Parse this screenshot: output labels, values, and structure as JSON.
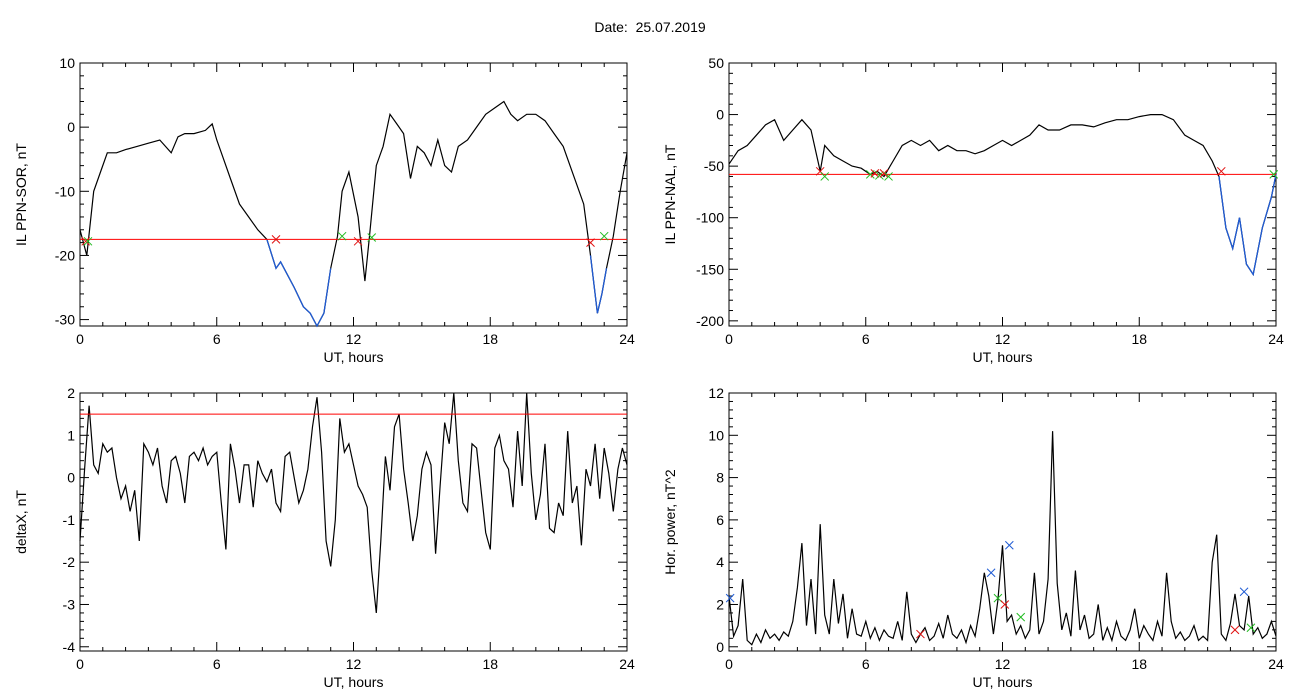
{
  "page": {
    "title": "Date:  25.07.2019"
  },
  "colors": {
    "trace": "#000000",
    "threshold": "#ff0000",
    "below_threshold": "#1f5bd4",
    "marker_red": "#e01010",
    "marker_green": "#22bb22",
    "marker_blue": "#1f5bd4"
  },
  "chart_data": [
    {
      "id": "sor",
      "type": "line",
      "xlabel": "UT, hours",
      "ylabel": "IL PPN-SOR, nT",
      "xlim": [
        0,
        24
      ],
      "ylim": [
        -31,
        10
      ],
      "xticks": [
        0,
        6,
        12,
        18,
        24
      ],
      "yticks": [
        -30,
        -20,
        -10,
        0,
        10
      ],
      "threshold": -17.5,
      "series": [
        {
          "x": [
            0,
            0.3,
            0.6,
            0.9,
            1.2,
            1.6,
            2,
            2.5,
            3,
            3.5,
            4,
            4.3,
            4.6,
            5,
            5.5,
            5.8,
            6,
            6.3,
            6.6,
            7,
            7.4,
            7.8,
            8.2,
            8.6,
            8.8,
            9.1,
            9.4,
            9.8,
            10.1,
            10.4,
            10.7,
            11,
            11.3,
            11.5,
            11.8,
            12.2,
            12.5,
            12.7,
            13,
            13.3,
            13.6,
            13.9,
            14.2,
            14.5,
            14.8,
            15.1,
            15.4,
            15.7,
            16,
            16.3,
            16.6,
            17,
            17.4,
            17.8,
            18.2,
            18.6,
            18.9,
            19.2,
            19.6,
            20,
            20.4,
            20.8,
            21.2,
            21.5,
            21.8,
            22.1,
            22.4,
            22.7,
            22.9,
            23.1,
            23.4,
            23.7,
            24
          ],
          "y": [
            -16,
            -20,
            -10,
            -7,
            -4,
            -4,
            -3.5,
            -3,
            -2.5,
            -2,
            -4,
            -1.5,
            -1,
            -1,
            -0.5,
            0.5,
            -2,
            -5,
            -8,
            -12,
            -14,
            -16,
            -17.5,
            -22,
            -21,
            -23,
            -25,
            -28,
            -29,
            -31,
            -29,
            -22,
            -17,
            -10,
            -7,
            -14,
            -24,
            -17,
            -6,
            -3,
            2,
            0.5,
            -1,
            -8,
            -3,
            -4,
            -6,
            -2,
            -6,
            -7,
            -3,
            -2,
            0,
            2,
            3,
            4,
            2,
            1,
            2,
            2,
            1,
            -1,
            -3,
            -6,
            -9,
            -12,
            -20,
            -29,
            -26,
            -22,
            -17,
            -10,
            -4
          ]
        }
      ],
      "markers": [
        {
          "x": 0.25,
          "y": -17.8,
          "color": "red"
        },
        {
          "x": 0.35,
          "y": -17.8,
          "color": "green"
        },
        {
          "x": 8.6,
          "y": -17.5,
          "color": "red"
        },
        {
          "x": 11.5,
          "y": -17,
          "color": "green"
        },
        {
          "x": 12.2,
          "y": -17.8,
          "color": "red"
        },
        {
          "x": 12.8,
          "y": -17.2,
          "color": "green"
        },
        {
          "x": 22.4,
          "y": -18,
          "color": "red"
        },
        {
          "x": 23,
          "y": -17,
          "color": "green"
        }
      ]
    },
    {
      "id": "nal",
      "type": "line",
      "xlabel": "UT, hours",
      "ylabel": "IL PPN-NAL, nT",
      "xlim": [
        0,
        24
      ],
      "ylim": [
        -205,
        50
      ],
      "xticks": [
        0,
        6,
        12,
        18,
        24
      ],
      "yticks": [
        -200,
        -150,
        -100,
        -50,
        0,
        50
      ],
      "threshold": -58,
      "series": [
        {
          "x": [
            0,
            0.4,
            0.8,
            1.2,
            1.6,
            2,
            2.4,
            2.8,
            3.2,
            3.6,
            4,
            4.2,
            4.6,
            5,
            5.4,
            5.8,
            6.2,
            6.5,
            6.8,
            7.2,
            7.6,
            8,
            8.4,
            8.8,
            9.2,
            9.6,
            10,
            10.4,
            10.8,
            11.2,
            11.6,
            12,
            12.4,
            12.8,
            13.2,
            13.6,
            14,
            14.5,
            15,
            15.5,
            16,
            16.5,
            17,
            17.5,
            18,
            18.5,
            19,
            19.5,
            20,
            20.4,
            20.8,
            21.2,
            21.5,
            21.8,
            22.1,
            22.4,
            22.7,
            23,
            23.4,
            23.8,
            24
          ],
          "y": [
            -48,
            -35,
            -30,
            -20,
            -10,
            -5,
            -25,
            -15,
            -5,
            -15,
            -55,
            -30,
            -40,
            -45,
            -50,
            -52,
            -58,
            -55,
            -60,
            -45,
            -30,
            -25,
            -30,
            -25,
            -35,
            -30,
            -35,
            -35,
            -38,
            -35,
            -30,
            -25,
            -30,
            -25,
            -20,
            -10,
            -15,
            -15,
            -10,
            -10,
            -12,
            -8,
            -5,
            -5,
            -2,
            0,
            0,
            -5,
            -20,
            -25,
            -30,
            -45,
            -60,
            -110,
            -130,
            -100,
            -145,
            -155,
            -110,
            -80,
            -58
          ]
        }
      ],
      "markers": [
        {
          "x": 4.0,
          "y": -55,
          "color": "red"
        },
        {
          "x": 4.2,
          "y": -60,
          "color": "green"
        },
        {
          "x": 6.2,
          "y": -58,
          "color": "green"
        },
        {
          "x": 6.4,
          "y": -57,
          "color": "red"
        },
        {
          "x": 6.6,
          "y": -59,
          "color": "green"
        },
        {
          "x": 6.8,
          "y": -57,
          "color": "red"
        },
        {
          "x": 7.0,
          "y": -60,
          "color": "green"
        },
        {
          "x": 21.6,
          "y": -55,
          "color": "red"
        },
        {
          "x": 23.9,
          "y": -58,
          "color": "green"
        }
      ]
    },
    {
      "id": "deltax",
      "type": "line",
      "xlabel": "UT, hours",
      "ylabel": "deltaX, nT",
      "xlim": [
        0,
        24
      ],
      "ylim": [
        -4.1,
        2
      ],
      "xticks": [
        0,
        6,
        12,
        18,
        24
      ],
      "yticks": [
        -4,
        -3,
        -2,
        -1,
        0,
        1,
        2
      ],
      "threshold": 1.5,
      "series": [
        {
          "x": [
            0,
            0.2,
            0.4,
            0.6,
            0.8,
            1.0,
            1.2,
            1.4,
            1.6,
            1.8,
            2.0,
            2.2,
            2.4,
            2.6,
            2.8,
            3.0,
            3.2,
            3.4,
            3.6,
            3.8,
            4.0,
            4.2,
            4.4,
            4.6,
            4.8,
            5.0,
            5.2,
            5.4,
            5.6,
            5.8,
            6.0,
            6.2,
            6.4,
            6.6,
            6.8,
            7.0,
            7.2,
            7.4,
            7.6,
            7.8,
            8.0,
            8.2,
            8.4,
            8.6,
            8.8,
            9.0,
            9.2,
            9.4,
            9.6,
            9.8,
            10.0,
            10.2,
            10.4,
            10.6,
            10.8,
            11.0,
            11.2,
            11.4,
            11.6,
            11.8,
            12.0,
            12.2,
            12.4,
            12.6,
            12.8,
            13.0,
            13.2,
            13.4,
            13.6,
            13.8,
            14.0,
            14.2,
            14.4,
            14.6,
            14.8,
            15.0,
            15.2,
            15.4,
            15.6,
            15.8,
            16.0,
            16.2,
            16.4,
            16.6,
            16.8,
            17.0,
            17.2,
            17.4,
            17.6,
            17.8,
            18.0,
            18.2,
            18.4,
            18.6,
            18.8,
            19.0,
            19.2,
            19.4,
            19.6,
            19.8,
            20.0,
            20.2,
            20.4,
            20.6,
            20.8,
            21.0,
            21.2,
            21.4,
            21.6,
            21.8,
            22.0,
            22.2,
            22.4,
            22.6,
            22.8,
            23.0,
            23.2,
            23.4,
            23.6,
            23.8,
            24.0
          ],
          "y": [
            -1.5,
            0.2,
            1.7,
            0.3,
            0.1,
            0.8,
            0.6,
            0.7,
            0,
            -0.5,
            -0.2,
            -0.8,
            -0.3,
            -1.5,
            0.8,
            0.6,
            0.3,
            0.7,
            -0.2,
            -0.6,
            0.4,
            0.5,
            0.1,
            -0.6,
            0.5,
            0.6,
            0.4,
            0.7,
            0.3,
            0.5,
            0.6,
            -0.6,
            -1.7,
            0.8,
            0.2,
            -0.6,
            0.3,
            0.3,
            -0.7,
            0.4,
            0.1,
            -0.1,
            0.2,
            -0.6,
            -0.8,
            0.5,
            0.6,
            0,
            -0.6,
            -0.3,
            0.2,
            1.2,
            1.9,
            0.6,
            -1.5,
            -2.1,
            -1.0,
            1.4,
            0.6,
            0.8,
            0.3,
            -0.2,
            -0.4,
            -0.7,
            -2.2,
            -3.2,
            -1.5,
            0.5,
            -0.3,
            1.2,
            1.5,
            0.2,
            -0.6,
            -1.5,
            -0.9,
            0.2,
            0.6,
            0.3,
            -1.8,
            -0.2,
            1.3,
            0.8,
            2.0,
            0.4,
            -0.6,
            -0.8,
            0.8,
            0.7,
            -0.3,
            -1.3,
            -1.7,
            0.7,
            1.0,
            0.4,
            0.2,
            -0.7,
            1.1,
            -0.2,
            2.0,
            0.1,
            -1.0,
            -0.4,
            0.8,
            -1.2,
            -1.3,
            -0.6,
            -0.9,
            1.1,
            -0.6,
            -0.2,
            -1.6,
            0.2,
            -0.2,
            0.8,
            -0.5,
            0.7,
            0.1,
            -0.8,
            0.2,
            0.7,
            0.3
          ]
        }
      ],
      "markers": []
    },
    {
      "id": "power",
      "type": "line",
      "xlabel": "UT, hours",
      "ylabel": "Hor. power, nT^2",
      "xlim": [
        0,
        24
      ],
      "ylim": [
        -0.2,
        12
      ],
      "xticks": [
        0,
        6,
        12,
        18,
        24
      ],
      "yticks": [
        0,
        2,
        4,
        6,
        8,
        10,
        12
      ],
      "threshold": null,
      "series": [
        {
          "x": [
            0,
            0.2,
            0.4,
            0.6,
            0.8,
            1.0,
            1.2,
            1.4,
            1.6,
            1.8,
            2.0,
            2.2,
            2.4,
            2.6,
            2.8,
            3.0,
            3.2,
            3.4,
            3.6,
            3.8,
            4.0,
            4.2,
            4.4,
            4.6,
            4.8,
            5.0,
            5.2,
            5.4,
            5.6,
            5.8,
            6.0,
            6.2,
            6.4,
            6.6,
            6.8,
            7.0,
            7.2,
            7.4,
            7.6,
            7.8,
            8.0,
            8.2,
            8.4,
            8.6,
            8.8,
            9.0,
            9.2,
            9.4,
            9.6,
            9.8,
            10.0,
            10.2,
            10.4,
            10.6,
            10.8,
            11.0,
            11.2,
            11.4,
            11.6,
            11.8,
            12.0,
            12.2,
            12.4,
            12.6,
            12.8,
            13.0,
            13.2,
            13.4,
            13.6,
            13.8,
            14.0,
            14.2,
            14.4,
            14.6,
            14.8,
            15.0,
            15.2,
            15.4,
            15.6,
            15.8,
            16.0,
            16.2,
            16.4,
            16.6,
            16.8,
            17.0,
            17.2,
            17.4,
            17.6,
            17.8,
            18.0,
            18.2,
            18.4,
            18.6,
            18.8,
            19.0,
            19.2,
            19.4,
            19.6,
            19.8,
            20.0,
            20.2,
            20.4,
            20.6,
            20.8,
            21.0,
            21.2,
            21.4,
            21.6,
            21.8,
            22.0,
            22.2,
            22.4,
            22.6,
            22.8,
            23.0,
            23.2,
            23.4,
            23.6,
            23.8,
            24.0
          ],
          "y": [
            2.4,
            0.5,
            1.0,
            3.2,
            0.3,
            0.1,
            0.6,
            0.2,
            0.8,
            0.4,
            0.6,
            0.3,
            0.7,
            0.5,
            1.2,
            2.8,
            4.9,
            1.0,
            3.2,
            0.6,
            5.8,
            1.5,
            0.6,
            3.2,
            1.1,
            2.5,
            0.4,
            1.8,
            0.6,
            0.5,
            1.2,
            0.4,
            0.9,
            0.3,
            0.8,
            0.5,
            0.4,
            1.2,
            0.3,
            2.6,
            0.6,
            0.2,
            0.6,
            0.9,
            0.3,
            0.5,
            1.1,
            0.4,
            1.5,
            0.6,
            0.4,
            0.8,
            0.2,
            1.0,
            0.5,
            1.8,
            3.5,
            2.4,
            0.6,
            2.2,
            4.8,
            1.2,
            1.5,
            0.6,
            1.0,
            0.4,
            0.8,
            3.5,
            0.6,
            1.2,
            3.2,
            10.2,
            3.0,
            0.8,
            1.6,
            0.5,
            3.6,
            0.8,
            1.5,
            0.4,
            0.6,
            2.0,
            0.3,
            0.9,
            0.3,
            1.2,
            0.5,
            0.3,
            0.8,
            1.8,
            0.4,
            1.0,
            0.6,
            0.3,
            1.2,
            0.5,
            3.5,
            1.2,
            0.4,
            0.7,
            0.3,
            0.5,
            1.0,
            0.3,
            0.5,
            0.3,
            4.0,
            5.3,
            0.6,
            0.3,
            1.1,
            2.5,
            1.0,
            0.8,
            2.4,
            0.6,
            0.9,
            0.4,
            0.6,
            1.2,
            0.5
          ]
        }
      ],
      "markers": [
        {
          "x": 0.05,
          "y": 2.3,
          "color": "blue"
        },
        {
          "x": 8.4,
          "y": 0.6,
          "color": "red"
        },
        {
          "x": 11.5,
          "y": 3.5,
          "color": "blue"
        },
        {
          "x": 11.8,
          "y": 2.3,
          "color": "green"
        },
        {
          "x": 12.1,
          "y": 2.0,
          "color": "red"
        },
        {
          "x": 12.3,
          "y": 4.8,
          "color": "blue"
        },
        {
          "x": 12.8,
          "y": 1.4,
          "color": "green"
        },
        {
          "x": 22.2,
          "y": 0.8,
          "color": "red"
        },
        {
          "x": 22.6,
          "y": 2.6,
          "color": "blue"
        },
        {
          "x": 22.9,
          "y": 0.9,
          "color": "green"
        }
      ]
    }
  ]
}
